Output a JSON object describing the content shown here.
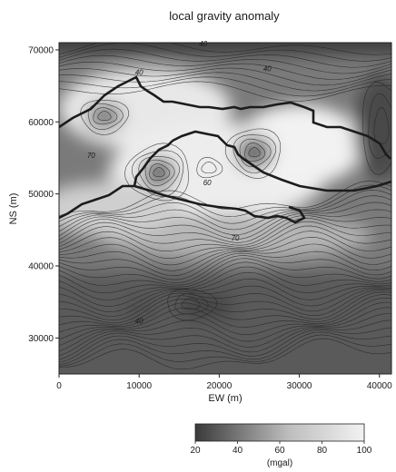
{
  "chart_data": {
    "type": "heatmap",
    "title": "local gravity anomaly",
    "xlabel": "EW (m)",
    "ylabel": "NS (m)",
    "xlim": [
      0,
      41500
    ],
    "ylim": [
      25000,
      71000
    ],
    "x_ticks": [
      0,
      10000,
      20000,
      30000,
      40000
    ],
    "y_ticks": [
      30000,
      40000,
      50000,
      60000,
      70000
    ],
    "colorbar": {
      "label": "(mgal)",
      "min": 20,
      "max": 100,
      "ticks": [
        20,
        40,
        60,
        80,
        100
      ],
      "colors": [
        "#3a3a3a",
        "#f2f2f2"
      ]
    },
    "contour_labels": [
      {
        "text": "70",
        "x": 4000,
        "y": 55000
      },
      {
        "text": "60",
        "x": 18500,
        "y": 51200
      },
      {
        "text": "70",
        "x": 22000,
        "y": 43500
      },
      {
        "text": "40",
        "x": 10000,
        "y": 66500
      },
      {
        "text": "40",
        "x": 10000,
        "y": 32000
      },
      {
        "text": "40",
        "x": 26000,
        "y": 67000
      },
      {
        "text": "40",
        "x": 18000,
        "y": 70500
      }
    ]
  }
}
